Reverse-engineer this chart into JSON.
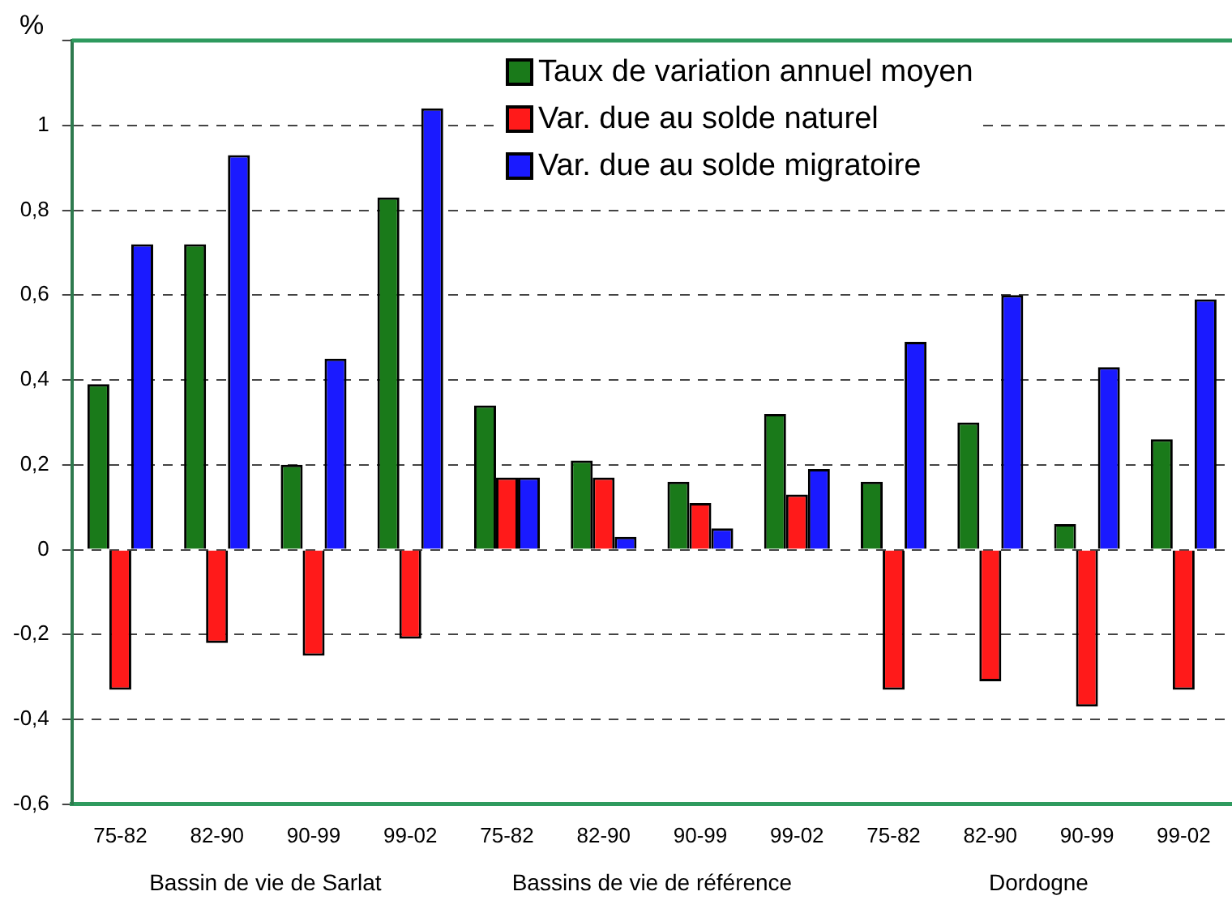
{
  "chart_data": {
    "type": "bar",
    "ylabel": "%",
    "categories": [
      "75-82",
      "82-90",
      "90-99",
      "99-02",
      "75-82",
      "82-90",
      "90-99",
      "99-02",
      "75-82",
      "82-90",
      "90-99",
      "99-02"
    ],
    "series": [
      {
        "name": "Taux de variation annuel moyen",
        "color": "#1a7a1a",
        "values": [
          0.39,
          0.72,
          0.2,
          0.83,
          0.34,
          0.21,
          0.16,
          0.32,
          0.16,
          0.3,
          0.06,
          0.26
        ]
      },
      {
        "name": "Var. due au solde naturel",
        "color": "#ff1a1a",
        "values": [
          -0.33,
          -0.22,
          -0.25,
          -0.21,
          0.17,
          0.17,
          0.11,
          0.13,
          -0.33,
          -0.31,
          -0.37,
          -0.33
        ]
      },
      {
        "name": "Var. due au solde migratoire",
        "color": "#1a1aff",
        "values": [
          0.72,
          0.93,
          0.45,
          1.04,
          0.17,
          0.03,
          0.05,
          0.19,
          0.49,
          0.6,
          0.43,
          0.59
        ]
      }
    ],
    "ylim": [
      -0.6,
      1.2
    ],
    "yticks": [
      {
        "value": -0.6,
        "label": "-0,6"
      },
      {
        "value": -0.4,
        "label": "-0,4"
      },
      {
        "value": -0.2,
        "label": "-0,2"
      },
      0,
      {
        "value": 0.2,
        "label": "0,2"
      },
      {
        "value": 0.4,
        "label": "0,4"
      },
      {
        "value": 0.6,
        "label": "0,6"
      },
      {
        "value": 0.8,
        "label": "0,8"
      },
      1,
      {
        "value": 1.2,
        "label": null
      }
    ],
    "grid": "y",
    "legend": "top",
    "annotations": [
      "Bassin de vie de Sarlat",
      "Bassins de vie de référence",
      "Dordogne"
    ]
  }
}
